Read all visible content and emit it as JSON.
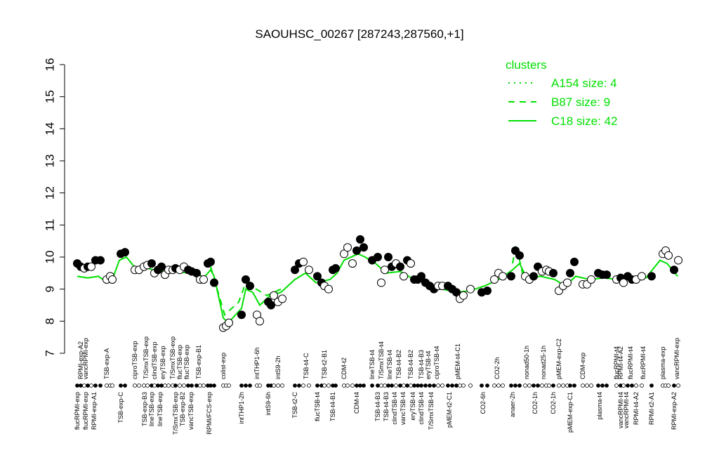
{
  "chart_data": {
    "type": "scatter",
    "title": "SAOUHSC_00267 [287243,287560,+1]",
    "xlim": [
      0,
      175
    ],
    "ylim": [
      7,
      16
    ],
    "yticks": [
      7,
      8,
      9,
      10,
      11,
      12,
      13,
      14,
      15,
      16
    ],
    "x": [
      2,
      3,
      4,
      5,
      6,
      7.2,
      8.6,
      10.4,
      11.4,
      12,
      14.4,
      15.6,
      18.4,
      19.6,
      21,
      22,
      23.2,
      24,
      25,
      26,
      27,
      28,
      29.2,
      30,
      31.2,
      32.4,
      33.6,
      34.6,
      36,
      37,
      38,
      39.2,
      40,
      41,
      43.6,
      44.4,
      45.2,
      48.8,
      50,
      51.2,
      53.2,
      54,
      56.4,
      57.2,
      58,
      59.2,
      60.4,
      64,
      65.2,
      66.4,
      68,
      70.4,
      71.6,
      72.4,
      73.6,
      74.8,
      75.6,
      78,
      79,
      80.4,
      81.6,
      82.6,
      83.6,
      86,
      87.6,
      88.6,
      89.6,
      90.6,
      91.6,
      92.8,
      94,
      95,
      96,
      97,
      98,
      99,
      100,
      101.2,
      102.4,
      103.6,
      104.8,
      106,
      107.6,
      108.8,
      110,
      111,
      112,
      114,
      117.2,
      118.8,
      120.8,
      122,
      123.2,
      125.6,
      126.8,
      128,
      129.6,
      130.8,
      132,
      133.2,
      134.4,
      135.6,
      136.4,
      137.6,
      139.2,
      140.4,
      141.6,
      142.4,
      143.6,
      146,
      147.2,
      148.4,
      150.4,
      151.6,
      152.8,
      155.6,
      156.8,
      157.6,
      158.8,
      160,
      161.2,
      162.8,
      165.6,
      168.8,
      169.6,
      170.4,
      172,
      173.2
    ],
    "values": [
      9.8,
      9.7,
      9.65,
      9.7,
      9.7,
      9.9,
      9.9,
      9.3,
      9.4,
      9.3,
      10.1,
      10.15,
      9.6,
      9.6,
      9.7,
      9.75,
      9.8,
      9.5,
      9.6,
      9.7,
      9.45,
      9.6,
      9.6,
      9.65,
      9.6,
      9.7,
      9.6,
      9.55,
      9.5,
      9.3,
      9.3,
      9.8,
      9.85,
      9.2,
      7.8,
      7.85,
      7.95,
      8.2,
      9.3,
      9.1,
      8.2,
      8.0,
      8.6,
      8.5,
      8.8,
      8.6,
      8.7,
      9.6,
      9.8,
      9.85,
      9.6,
      9.4,
      9.2,
      9.1,
      9.0,
      9.6,
      9.65,
      10.1,
      10.3,
      9.8,
      10.2,
      10.55,
      10.3,
      9.9,
      10.0,
      9.2,
      9.6,
      10.0,
      9.7,
      9.8,
      9.7,
      9.4,
      9.9,
      9.8,
      9.3,
      9.3,
      9.4,
      9.2,
      9.1,
      9.0,
      9.1,
      9.1,
      9.1,
      9.0,
      8.9,
      8.7,
      8.8,
      9.0,
      8.9,
      8.95,
      9.3,
      9.5,
      9.4,
      9.4,
      10.2,
      10.05,
      9.4,
      9.3,
      9.4,
      9.7,
      9.55,
      9.6,
      9.55,
      9.5,
      8.95,
      9.1,
      9.2,
      9.5,
      9.85,
      9.15,
      9.15,
      9.3,
      9.5,
      9.45,
      9.45,
      9.3,
      9.35,
      9.2,
      9.4,
      9.3,
      9.3,
      9.4,
      9.4,
      10.1,
      10.2,
      10.05,
      9.6,
      9.9
    ],
    "point_filled": [
      1,
      1,
      0,
      1,
      0,
      1,
      1,
      0,
      0,
      0,
      1,
      1,
      0,
      0,
      0,
      0,
      1,
      0,
      1,
      1,
      0,
      0,
      0,
      1,
      0,
      0,
      1,
      1,
      1,
      0,
      0,
      1,
      1,
      1,
      0,
      0,
      0,
      1,
      1,
      1,
      0,
      0,
      1,
      1,
      0,
      0,
      0,
      1,
      1,
      0,
      0,
      1,
      1,
      0,
      0,
      1,
      1,
      0,
      0,
      0,
      1,
      1,
      1,
      1,
      1,
      0,
      0,
      1,
      1,
      0,
      1,
      0,
      1,
      0,
      1,
      1,
      1,
      1,
      1,
      1,
      0,
      0,
      1,
      1,
      1,
      0,
      0,
      0,
      1,
      1,
      0,
      0,
      0,
      1,
      1,
      1,
      0,
      0,
      1,
      1,
      0,
      0,
      0,
      1,
      0,
      0,
      0,
      1,
      1,
      0,
      0,
      0,
      1,
      1,
      1,
      0,
      1,
      0,
      1,
      1,
      0,
      0,
      1,
      0,
      0,
      0,
      1,
      0
    ],
    "series": [
      {
        "name": "A154 size: 4",
        "style": "dotted",
        "color": "#00e000",
        "x": [
          34,
          38,
          null,
          150,
          156
        ],
        "values": [
          9.6,
          9.4,
          null,
          9.45,
          9.35
        ]
      },
      {
        "name": "B87 size: 9",
        "style": "dashed",
        "color": "#00e000",
        "x": [
          40,
          44,
          48,
          50,
          56,
          60,
          null,
          126,
          127,
          129
        ],
        "values": [
          9.7,
          8.2,
          8.6,
          9.2,
          8.8,
          9.0,
          null,
          9.8,
          10.4,
          9.4
        ]
      },
      {
        "name": "C18 size: 42",
        "style": "solid",
        "color": "#00e000",
        "x": [
          2,
          5,
          8,
          10,
          12,
          14,
          16,
          19,
          22,
          26,
          30,
          34,
          38,
          40,
          41,
          43.6,
          45,
          48.8,
          50,
          52,
          54,
          57,
          60,
          64,
          67,
          70,
          74,
          76,
          78,
          82,
          84,
          87,
          90,
          94,
          98,
          102,
          106,
          110,
          114,
          118,
          122,
          126,
          128,
          130,
          134,
          138,
          141,
          144,
          148,
          152,
          156,
          160,
          164,
          168,
          170,
          173
        ],
        "values": [
          9.4,
          9.35,
          9.4,
          9.25,
          9.3,
          9.9,
          10.0,
          9.6,
          9.65,
          9.55,
          9.55,
          9.5,
          9.35,
          9.6,
          9.4,
          8.1,
          7.95,
          8.4,
          9.0,
          8.9,
          8.5,
          8.8,
          8.9,
          9.3,
          9.5,
          9.2,
          9.3,
          9.5,
          9.9,
          10.1,
          10.0,
          9.8,
          9.5,
          9.55,
          9.3,
          9.15,
          9.0,
          8.9,
          8.95,
          9.1,
          9.3,
          9.6,
          9.8,
          9.35,
          9.4,
          9.3,
          9.1,
          9.4,
          9.3,
          9.35,
          9.3,
          9.3,
          9.35,
          9.9,
          9.8,
          9.4
        ]
      }
    ],
    "legend_title": "clusters",
    "top_labels": [
      "RPMI-exp-A2",
      "vancRPMI-exp",
      "TSB-exp-A",
      "ciproTSB-exp",
      "T/SmxTSB-exp",
      "clindTSB-exp",
      "eryTSB-exp",
      "T/SmxTSB-exp",
      "flucTSB-exp",
      "flucTSB-exp",
      "TSB-exp-B1",
      "colist-exp",
      "intTHP1-6h",
      "intS9-2h",
      "TSB-t4-C",
      "TSB-t2-B1",
      "CDM-t2",
      "lineTSB-t4",
      "T/SmxTSB-t4",
      "lineTSB-t4",
      "TSB-t4-B2",
      "TSB-t4-B2",
      "TSB-t4-B3",
      "eryTSB-t4",
      "ciproTSB-t4",
      "pMEM-t4-C1",
      "CO2-2h",
      "nonad50-1h",
      "nonad25-1h",
      "pMEM-exp-C2",
      "CDM-exp",
      "flucRPMI-t4",
      "RPMI-t4-A2",
      "flucRPMI-t4",
      "flucRPMI-t4",
      "plasma-exp",
      "vancRPMI-exp"
    ],
    "top_label_x": [
      3,
      4.4,
      10.4,
      18.4,
      21.6,
      24,
      26.4,
      29.2,
      31.2,
      33.2,
      36.6,
      43.6,
      53.2,
      59.2,
      67.2,
      72.4,
      78,
      86,
      88.6,
      91,
      93.6,
      97,
      100,
      102,
      104.4,
      110.4,
      121.6,
      130,
      134.8,
      139.2,
      146,
      155.6,
      156.8,
      159.6,
      163.2,
      168.8,
      172.8
    ],
    "bottom_labels": [
      "flucRPMI-exp",
      "flucRPMI-exp",
      "RPMI-exp-A1",
      "TSB-exp-C",
      "TSB-exp-B3",
      "lineTSB-exp",
      "lineTSB-exp",
      "T/SmxTSB-exp",
      "TSB-exp-B2",
      "vancTSB-exp",
      "RPMI/FCS-exp",
      "intTHP1-2h",
      "intS9-6h",
      "TSB-t2-C",
      "flucTSB-t4",
      "TSB-t4-B1",
      "CDM-t4",
      "TSB-t4-B3",
      "TSB-t4-B3",
      "clindTSB-t4",
      "vancTSB-t4",
      "eryTSB-t4",
      "clindTSB-t4",
      "T/SmxTSB-t4",
      "pMEM-t2-C1",
      "CO2-6h",
      "anaer-2h",
      "CO2-1h",
      "CO2-1h",
      "pMEM-exp-C1",
      "plasma-t4",
      "vancRPMI-t4",
      "vancRPMI-t4",
      "RPMI-t4-A2",
      "RPMI-t2-A1",
      "RPMI-exp-A2"
    ],
    "bottom_label_x": [
      2,
      4.4,
      6.8,
      14.4,
      21.2,
      23.2,
      25.6,
      30,
      32,
      34.4,
      39.6,
      48.8,
      56.4,
      64,
      70.4,
      74.8,
      81.6,
      87.6,
      90,
      92.4,
      94.8,
      97.6,
      100,
      102.8,
      108,
      117.6,
      126,
      132.4,
      137.6,
      142.4,
      150.8,
      156.8,
      158.4,
      161.2,
      165.6,
      172
    ]
  }
}
